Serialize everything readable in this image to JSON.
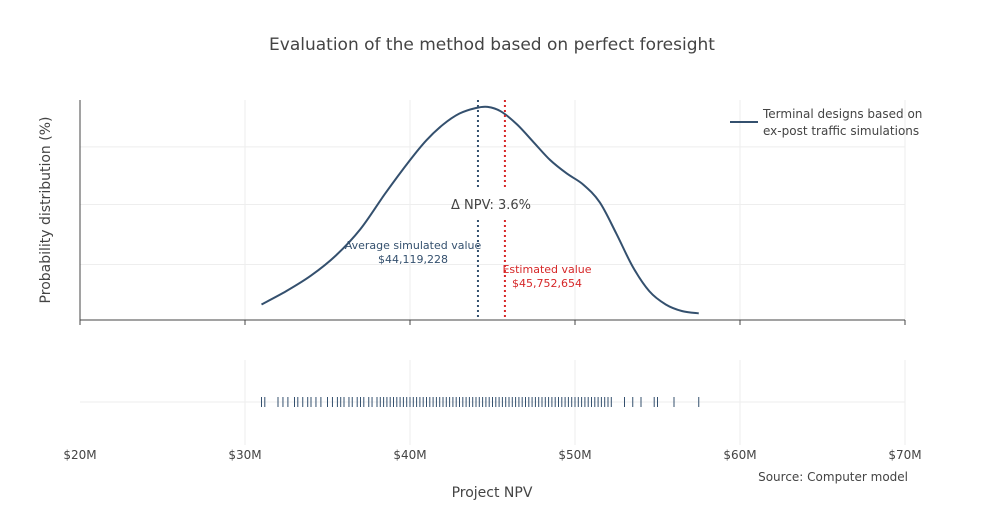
{
  "chart_data": {
    "type": "line",
    "title": "Evaluation of the method based on perfect foresight",
    "xlabel": "Project NPV",
    "ylabel": "Probability distribution (%)",
    "xlim": [
      20000000,
      70000000
    ],
    "x_ticks": [
      20000000,
      30000000,
      40000000,
      50000000,
      60000000,
      70000000
    ],
    "x_tick_labels": [
      "$20M",
      "$30M",
      "$40M",
      "$50M",
      "$60M",
      "$70M"
    ],
    "ylim": [
      0,
      1.0
    ],
    "grid": true,
    "legend_position": "top-right",
    "series": [
      {
        "name": "Terminal designs based on ex-post traffic simulations",
        "name_lines": [
          "Terminal designs based on",
          "ex-post traffic simulations"
        ],
        "color": "#34506e",
        "x": [
          31000000,
          32500000,
          34000000,
          35500000,
          37000000,
          38500000,
          40000000,
          41000000,
          42000000,
          43000000,
          44000000,
          44700000,
          45500000,
          46500000,
          47500000,
          48500000,
          49500000,
          50500000,
          51500000,
          52500000,
          53500000,
          54500000,
          55500000,
          56500000,
          57500000
        ],
        "values": [
          0.07,
          0.13,
          0.2,
          0.29,
          0.41,
          0.57,
          0.72,
          0.81,
          0.88,
          0.93,
          0.955,
          0.96,
          0.94,
          0.88,
          0.8,
          0.72,
          0.66,
          0.61,
          0.53,
          0.39,
          0.24,
          0.13,
          0.07,
          0.04,
          0.03
        ]
      }
    ],
    "annotations": {
      "average_label": "Average simulated value",
      "average_value_text": "$44,119,228",
      "average_value": 44119228,
      "average_color": "#34506e",
      "estimated_label": "Estimated value",
      "estimated_value_text": "$45,752,654",
      "estimated_value": 45752654,
      "estimated_color": "#d62728",
      "delta_text": "Δ NPV: 3.6%"
    },
    "rug": [
      31000000,
      31200000,
      32000000,
      32300000,
      32600000,
      33000000,
      33200000,
      33500000,
      33800000,
      34000000,
      34300000,
      34600000,
      35000000,
      35300000,
      35600000,
      35800000,
      36000000,
      36300000,
      36500000,
      36800000,
      37000000,
      37200000,
      37500000,
      37700000,
      38000000,
      38200000,
      38400000,
      38600000,
      38800000,
      39000000,
      39200000,
      39400000,
      39600000,
      39800000,
      40000000,
      40200000,
      40400000,
      40600000,
      40800000,
      41000000,
      41200000,
      41400000,
      41600000,
      41800000,
      42000000,
      42200000,
      42400000,
      42600000,
      42800000,
      43000000,
      43200000,
      43400000,
      43600000,
      43800000,
      44000000,
      44200000,
      44400000,
      44600000,
      44800000,
      45000000,
      45200000,
      45400000,
      45600000,
      45800000,
      46000000,
      46200000,
      46400000,
      46600000,
      46800000,
      47000000,
      47200000,
      47400000,
      47600000,
      47800000,
      48000000,
      48200000,
      48400000,
      48600000,
      48800000,
      49000000,
      49200000,
      49400000,
      49600000,
      49800000,
      50000000,
      50200000,
      50400000,
      50600000,
      50800000,
      51000000,
      51200000,
      51400000,
      51600000,
      51800000,
      52000000,
      52200000,
      53000000,
      53500000,
      54000000,
      54800000,
      55000000,
      56000000,
      57500000
    ],
    "rug_color": "#34506e"
  },
  "source_text": "Source: Computer model"
}
